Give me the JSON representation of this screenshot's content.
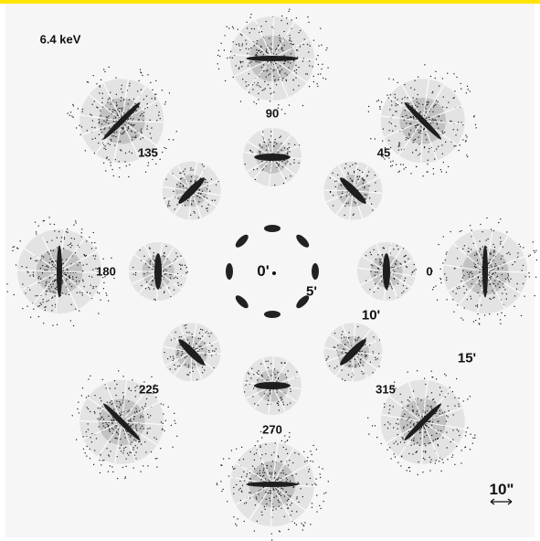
{
  "energy_label": "6.4 keV",
  "angle_labels": {
    "a90": "90",
    "a45": "45",
    "a0": "0",
    "a135": "135",
    "a180": "180",
    "a225": "225",
    "a270": "270",
    "a315": "315"
  },
  "offaxis_labels": {
    "r0": "0'",
    "r5": "5'",
    "r10": "10'",
    "r15": "15'"
  },
  "scale_bar_label": "10\"",
  "colors": {
    "top_bar": "#ffe500",
    "background": "#ffffff",
    "ink": "#111111"
  }
}
